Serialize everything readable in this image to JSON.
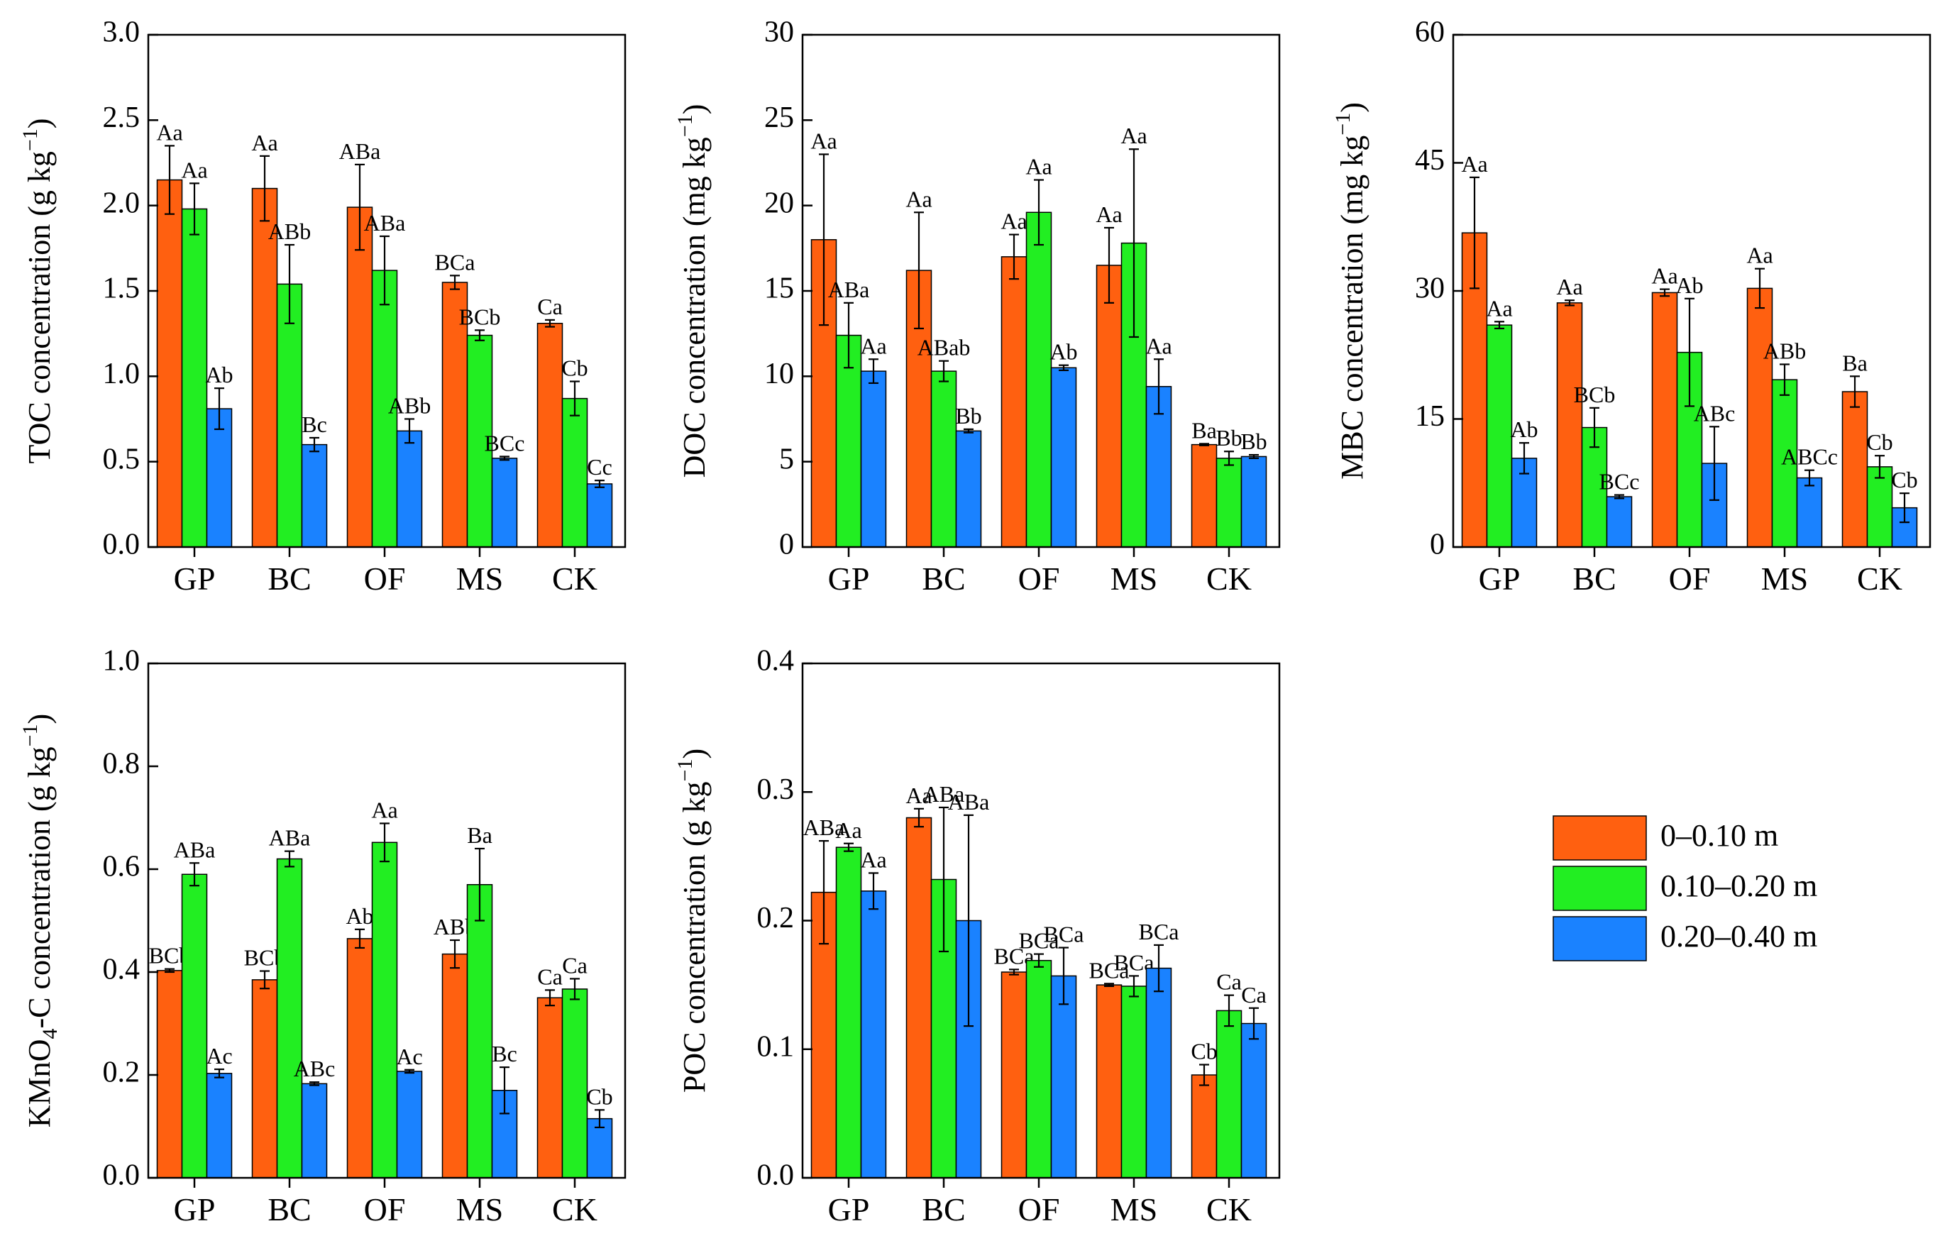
{
  "colors": {
    "s0": "#FF6010",
    "s1": "#22EE22",
    "s2": "#1A82FF"
  },
  "legend": {
    "items": [
      "0–0.10 m",
      "0.10–0.20 m",
      "0.20–0.40 m"
    ]
  },
  "chart_data": [
    {
      "type": "bar",
      "id": "toc",
      "ylabel": "TOC concentration (g kg",
      "ylabel_sup": "−1",
      "ylabel_tail": ")",
      "ylim": [
        0,
        3.0
      ],
      "yticks": [
        "0.0",
        "0.5",
        "1.0",
        "1.5",
        "2.0",
        "2.5",
        "3.0"
      ],
      "categories": [
        "GP",
        "BC",
        "OF",
        "MS",
        "CK"
      ],
      "series": [
        {
          "name": "0–0.10 m",
          "values": [
            2.15,
            2.1,
            1.99,
            1.55,
            1.31
          ],
          "errors": [
            0.2,
            0.19,
            0.25,
            0.04,
            0.02
          ],
          "labels": [
            "Aa",
            "Aa",
            "ABa",
            "BCa",
            "Ca"
          ]
        },
        {
          "name": "0.10–0.20 m",
          "values": [
            1.98,
            1.54,
            1.62,
            1.24,
            0.87
          ],
          "errors": [
            0.15,
            0.23,
            0.2,
            0.03,
            0.1
          ],
          "labels": [
            "Aa",
            "ABb",
            "ABa",
            "BCb",
            "Cb"
          ]
        },
        {
          "name": "0.20–0.40 m",
          "values": [
            0.81,
            0.6,
            0.68,
            0.52,
            0.37
          ],
          "errors": [
            0.12,
            0.04,
            0.07,
            0.01,
            0.02
          ],
          "labels": [
            "Ab",
            "Bc",
            "ABb",
            "BCc",
            "Cc"
          ]
        }
      ]
    },
    {
      "type": "bar",
      "id": "doc",
      "ylabel": "DOC concentration (mg kg",
      "ylabel_sup": "−1",
      "ylabel_tail": ")",
      "ylim": [
        0,
        30
      ],
      "yticks": [
        "0",
        "5",
        "10",
        "15",
        "20",
        "25",
        "30"
      ],
      "categories": [
        "GP",
        "BC",
        "OF",
        "MS",
        "CK"
      ],
      "series": [
        {
          "name": "0–0.10 m",
          "values": [
            18.0,
            16.2,
            17.0,
            16.5,
            6.0
          ],
          "errors": [
            5.0,
            3.4,
            1.3,
            2.2,
            0.05
          ],
          "labels": [
            "Aa",
            "Aa",
            "Aa",
            "Aa",
            "Ba"
          ]
        },
        {
          "name": "0.10–0.20 m",
          "values": [
            12.4,
            10.3,
            19.6,
            17.8,
            5.2
          ],
          "errors": [
            1.9,
            0.6,
            1.9,
            5.5,
            0.4
          ],
          "labels": [
            "ABa",
            "ABab",
            "Aa",
            "Aa",
            "Bb"
          ]
        },
        {
          "name": "0.20–0.40 m",
          "values": [
            10.3,
            6.8,
            10.5,
            9.4,
            5.3
          ],
          "errors": [
            0.7,
            0.1,
            0.15,
            1.6,
            0.1
          ],
          "labels": [
            "Aa",
            "Bb",
            "Ab",
            "Aa",
            "Bb"
          ]
        }
      ]
    },
    {
      "type": "bar",
      "id": "mbc",
      "ylabel": "MBC concentration (mg kg",
      "ylabel_sup": "−1",
      "ylabel_tail": ")",
      "ylim": [
        0,
        60
      ],
      "yticks": [
        "0",
        "15",
        "30",
        "45",
        "60"
      ],
      "categories": [
        "GP",
        "BC",
        "OF",
        "MS",
        "CK"
      ],
      "series": [
        {
          "name": "0–0.10 m",
          "values": [
            36.8,
            28.6,
            29.8,
            30.3,
            18.2
          ],
          "errors": [
            6.5,
            0.3,
            0.4,
            2.3,
            1.8
          ],
          "labels": [
            "Aa",
            "Aa",
            "Aa",
            "Aa",
            "Ba"
          ]
        },
        {
          "name": "0.10–0.20 m",
          "values": [
            26.0,
            14.0,
            22.8,
            19.6,
            9.4
          ],
          "errors": [
            0.4,
            2.3,
            6.3,
            1.8,
            1.3
          ],
          "labels": [
            "Aa",
            "BCb",
            "Ab",
            "ABb",
            "Cb"
          ]
        },
        {
          "name": "0.20–0.40 m",
          "values": [
            10.4,
            5.9,
            9.8,
            8.1,
            4.6
          ],
          "errors": [
            1.8,
            0.2,
            4.3,
            0.9,
            1.7
          ],
          "labels": [
            "Ab",
            "BCc",
            "ABc",
            "ABCc",
            "Cb"
          ]
        }
      ]
    },
    {
      "type": "bar",
      "id": "kmno4",
      "ylabel": "KMnO",
      "ylabel_sub": "4",
      "ylabel_rest": "-C concentration (g kg",
      "ylabel_sup": "−1",
      "ylabel_tail": ")",
      "ylim": [
        0,
        1.0
      ],
      "yticks": [
        "0.0",
        "0.2",
        "0.4",
        "0.6",
        "0.8",
        "1.0"
      ],
      "categories": [
        "GP",
        "BC",
        "OF",
        "MS",
        "CK"
      ],
      "series": [
        {
          "name": "0–0.10 m",
          "values": [
            0.403,
            0.385,
            0.465,
            0.435,
            0.35
          ],
          "errors": [
            0.003,
            0.017,
            0.018,
            0.027,
            0.015
          ],
          "labels": [
            "BCb",
            "BCb",
            "Ab",
            "ABb",
            "Ca"
          ]
        },
        {
          "name": "0.10–0.20 m",
          "values": [
            0.59,
            0.62,
            0.652,
            0.57,
            0.367
          ],
          "errors": [
            0.022,
            0.015,
            0.037,
            0.07,
            0.02
          ],
          "labels": [
            "ABa",
            "ABa",
            "Aa",
            "Ba",
            "Ca"
          ]
        },
        {
          "name": "0.20–0.40 m",
          "values": [
            0.203,
            0.183,
            0.207,
            0.17,
            0.115
          ],
          "errors": [
            0.008,
            0.003,
            0.003,
            0.045,
            0.017
          ],
          "labels": [
            "Ac",
            "ABc",
            "Ac",
            "Bc",
            "Cb"
          ]
        }
      ]
    },
    {
      "type": "bar",
      "id": "poc",
      "ylabel": "POC concentration (g kg",
      "ylabel_sup": "−1",
      "ylabel_tail": ")",
      "ylim": [
        0,
        0.4
      ],
      "yticks": [
        "0.0",
        "0.1",
        "0.2",
        "0.3",
        "0.4"
      ],
      "categories": [
        "GP",
        "BC",
        "OF",
        "MS",
        "CK"
      ],
      "series": [
        {
          "name": "0–0.10 m",
          "values": [
            0.222,
            0.28,
            0.16,
            0.15,
            0.08
          ],
          "errors": [
            0.04,
            0.007,
            0.002,
            0.001,
            0.008
          ],
          "labels": [
            "ABa",
            "Aa",
            "BCa",
            "BCa",
            "Cb"
          ]
        },
        {
          "name": "0.10–0.20 m",
          "values": [
            0.257,
            0.232,
            0.169,
            0.149,
            0.13
          ],
          "errors": [
            0.003,
            0.056,
            0.005,
            0.008,
            0.012
          ],
          "labels": [
            "Aa",
            "ABa",
            "BCa",
            "BCa",
            "Ca"
          ]
        },
        {
          "name": "0.20–0.40 m",
          "values": [
            0.223,
            0.2,
            0.157,
            0.163,
            0.12
          ],
          "errors": [
            0.014,
            0.082,
            0.022,
            0.018,
            0.012
          ],
          "labels": [
            "Aa",
            "ABa",
            "BCa",
            "BCa",
            "Ca"
          ]
        }
      ]
    }
  ]
}
